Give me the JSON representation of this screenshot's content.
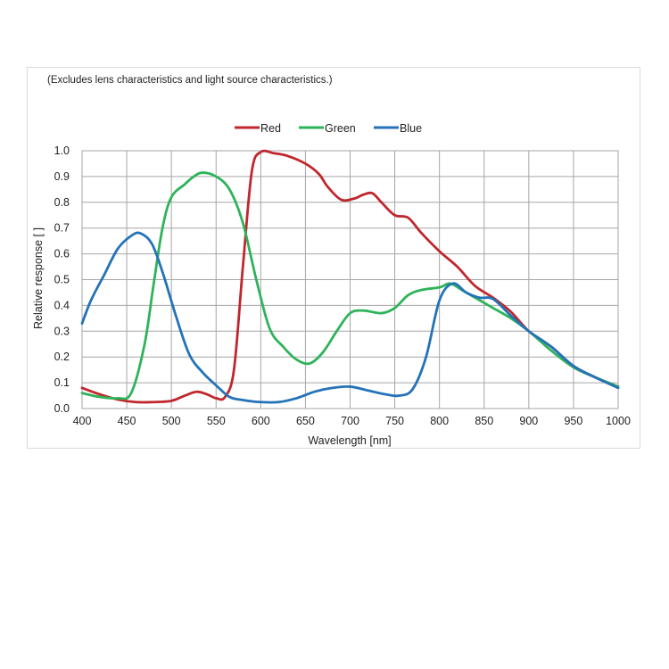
{
  "chart_data": {
    "type": "line",
    "note": "(Excludes lens characteristics and light source characteristics.)",
    "xlabel": "Wavelength [nm]",
    "ylabel": "Relative response [ ]",
    "xlim": [
      400,
      1000
    ],
    "ylim": [
      0,
      1.0
    ],
    "x_ticks": [
      400,
      450,
      500,
      550,
      600,
      650,
      700,
      750,
      800,
      850,
      900,
      950,
      1000
    ],
    "y_ticks": [
      "0.0",
      "0.1",
      "0.2",
      "0.3",
      "0.4",
      "0.5",
      "0.6",
      "0.7",
      "0.8",
      "0.9",
      "1.0"
    ],
    "grid": true,
    "legend_position": "top-center",
    "series": [
      {
        "name": "Red",
        "color": "#c0272d",
        "points": [
          [
            400,
            0.08
          ],
          [
            420,
            0.055
          ],
          [
            440,
            0.035
          ],
          [
            460,
            0.025
          ],
          [
            480,
            0.025
          ],
          [
            500,
            0.03
          ],
          [
            515,
            0.05
          ],
          [
            528,
            0.065
          ],
          [
            540,
            0.055
          ],
          [
            550,
            0.04
          ],
          [
            560,
            0.045
          ],
          [
            570,
            0.15
          ],
          [
            580,
            0.55
          ],
          [
            590,
            0.92
          ],
          [
            600,
            0.995
          ],
          [
            615,
            0.99
          ],
          [
            630,
            0.98
          ],
          [
            650,
            0.95
          ],
          [
            665,
            0.91
          ],
          [
            675,
            0.86
          ],
          [
            690,
            0.81
          ],
          [
            705,
            0.815
          ],
          [
            715,
            0.83
          ],
          [
            725,
            0.835
          ],
          [
            735,
            0.8
          ],
          [
            750,
            0.75
          ],
          [
            765,
            0.74
          ],
          [
            780,
            0.68
          ],
          [
            800,
            0.61
          ],
          [
            820,
            0.55
          ],
          [
            840,
            0.475
          ],
          [
            860,
            0.43
          ],
          [
            880,
            0.375
          ],
          [
            900,
            0.3
          ],
          [
            925,
            0.24
          ],
          [
            950,
            0.165
          ],
          [
            975,
            0.12
          ],
          [
            1000,
            0.085
          ]
        ]
      },
      {
        "name": "Green",
        "color": "#2eb35a",
        "points": [
          [
            400,
            0.06
          ],
          [
            420,
            0.045
          ],
          [
            440,
            0.04
          ],
          [
            455,
            0.06
          ],
          [
            470,
            0.25
          ],
          [
            480,
            0.48
          ],
          [
            490,
            0.7
          ],
          [
            500,
            0.82
          ],
          [
            515,
            0.87
          ],
          [
            525,
            0.9
          ],
          [
            535,
            0.915
          ],
          [
            550,
            0.9
          ],
          [
            565,
            0.85
          ],
          [
            580,
            0.72
          ],
          [
            595,
            0.5
          ],
          [
            610,
            0.31
          ],
          [
            625,
            0.24
          ],
          [
            640,
            0.19
          ],
          [
            655,
            0.175
          ],
          [
            670,
            0.22
          ],
          [
            685,
            0.3
          ],
          [
            700,
            0.37
          ],
          [
            715,
            0.38
          ],
          [
            735,
            0.37
          ],
          [
            750,
            0.39
          ],
          [
            765,
            0.44
          ],
          [
            780,
            0.46
          ],
          [
            800,
            0.47
          ],
          [
            812,
            0.485
          ],
          [
            825,
            0.46
          ],
          [
            840,
            0.43
          ],
          [
            860,
            0.39
          ],
          [
            880,
            0.35
          ],
          [
            900,
            0.3
          ],
          [
            925,
            0.225
          ],
          [
            950,
            0.16
          ],
          [
            975,
            0.12
          ],
          [
            1000,
            0.085
          ]
        ]
      },
      {
        "name": "Blue",
        "color": "#2472b8",
        "points": [
          [
            400,
            0.33
          ],
          [
            410,
            0.42
          ],
          [
            425,
            0.52
          ],
          [
            440,
            0.62
          ],
          [
            455,
            0.67
          ],
          [
            465,
            0.68
          ],
          [
            478,
            0.64
          ],
          [
            490,
            0.53
          ],
          [
            505,
            0.36
          ],
          [
            520,
            0.21
          ],
          [
            535,
            0.14
          ],
          [
            550,
            0.09
          ],
          [
            565,
            0.045
          ],
          [
            580,
            0.033
          ],
          [
            600,
            0.025
          ],
          [
            620,
            0.025
          ],
          [
            640,
            0.04
          ],
          [
            660,
            0.065
          ],
          [
            680,
            0.08
          ],
          [
            700,
            0.085
          ],
          [
            720,
            0.07
          ],
          [
            740,
            0.055
          ],
          [
            755,
            0.05
          ],
          [
            770,
            0.075
          ],
          [
            785,
            0.2
          ],
          [
            800,
            0.42
          ],
          [
            815,
            0.485
          ],
          [
            830,
            0.45
          ],
          [
            845,
            0.43
          ],
          [
            860,
            0.425
          ],
          [
            880,
            0.36
          ],
          [
            900,
            0.3
          ],
          [
            925,
            0.24
          ],
          [
            950,
            0.165
          ],
          [
            975,
            0.12
          ],
          [
            1000,
            0.08
          ]
        ]
      }
    ]
  }
}
